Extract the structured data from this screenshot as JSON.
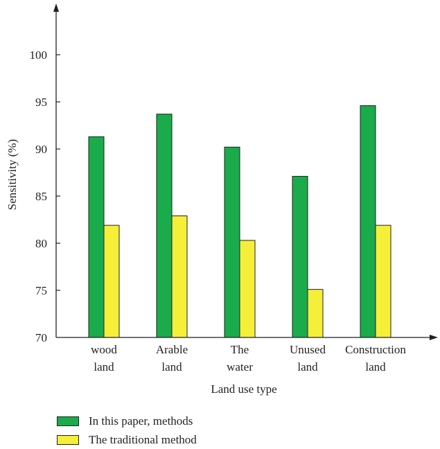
{
  "chart_data": {
    "type": "bar",
    "categories": [
      [
        "wood",
        "land"
      ],
      [
        "Arable",
        "land"
      ],
      [
        "The",
        "water"
      ],
      [
        "Unused",
        "land"
      ],
      [
        "Construction",
        "land"
      ]
    ],
    "series": [
      {
        "name": "In this paper, methods",
        "color": "#1aab4b",
        "values": [
          91.3,
          93.7,
          90.2,
          87.1,
          94.6
        ]
      },
      {
        "name": "The traditional method",
        "color": "#f5ef3a",
        "values": [
          81.9,
          82.9,
          80.3,
          75.1,
          81.9
        ]
      }
    ],
    "xlabel": "Land use type",
    "ylabel": "Sensitivity (%)",
    "ylim": [
      70,
      105
    ],
    "yticks": [
      "70",
      "75",
      "80",
      "85",
      "90",
      "95",
      "100"
    ],
    "grid": false,
    "legend_position": "bottom-left"
  }
}
